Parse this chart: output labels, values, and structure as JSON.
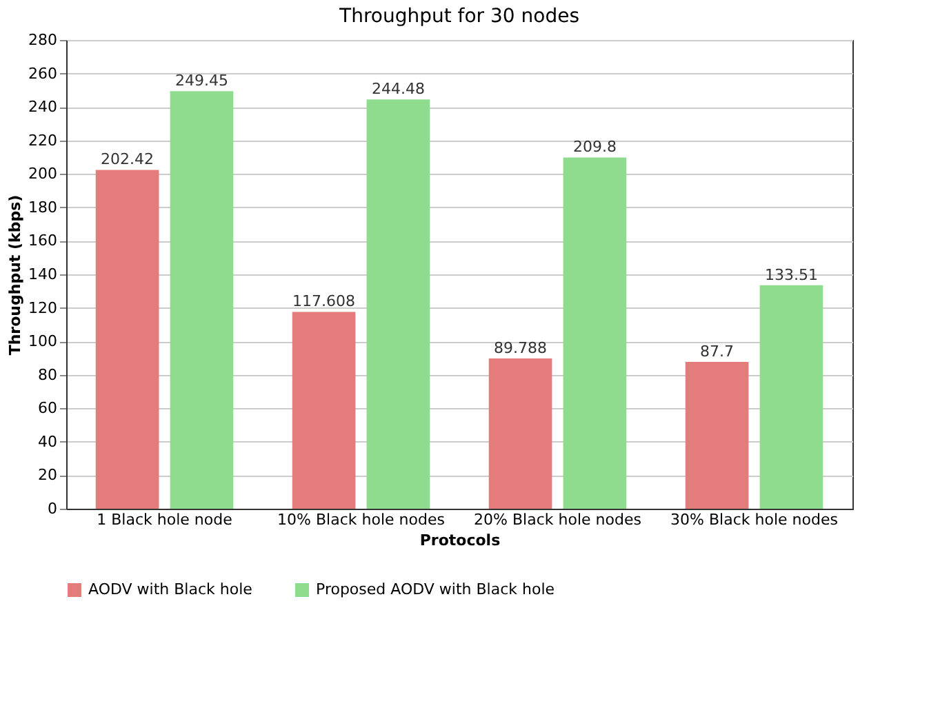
{
  "chart_data": {
    "type": "bar",
    "title": "Throughput for 30 nodes",
    "xlabel": "Protocols",
    "ylabel": "Throughput (kbps)",
    "categories": [
      "1 Black hole node",
      "10% Black hole nodes",
      "20% Black hole nodes",
      "30% Black hole nodes"
    ],
    "series": [
      {
        "name": "AODV with Black hole",
        "color": "#e47c7c",
        "values": [
          202.42,
          117.608,
          89.788,
          87.7
        ]
      },
      {
        "name": "Proposed AODV with Black hole",
        "color": "#8fdc8f",
        "values": [
          249.45,
          244.48,
          209.8,
          133.51
        ]
      }
    ],
    "ylim": [
      0,
      280
    ],
    "yticks": [
      0,
      20,
      40,
      60,
      80,
      100,
      120,
      140,
      160,
      180,
      200,
      220,
      240,
      260,
      280
    ],
    "grid": "y",
    "legend": "bottom left",
    "data_labels": true
  }
}
